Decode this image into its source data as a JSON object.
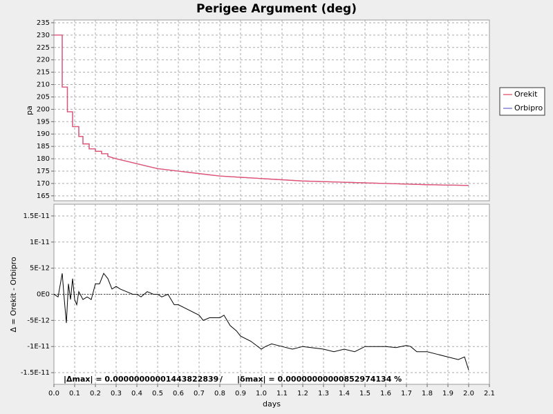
{
  "chart_data": [
    {
      "type": "line",
      "title": "Perigee Argument (deg)",
      "y_label": "pa",
      "x": [
        0,
        0.04,
        0.04,
        0.065,
        0.065,
        0.09,
        0.09,
        0.12,
        0.12,
        0.14,
        0.14,
        0.17,
        0.17,
        0.2,
        0.2,
        0.23,
        0.23,
        0.26,
        0.26,
        0.3,
        0.35,
        0.4,
        0.45,
        0.5,
        0.6,
        0.7,
        0.8,
        0.9,
        1.0,
        1.2,
        1.4,
        1.6,
        1.8,
        2.0
      ],
      "series": [
        {
          "name": "Orekit",
          "color": "#e8506e",
          "values": [
            230,
            230,
            209,
            209,
            199,
            199,
            193,
            193,
            189,
            189,
            186,
            186,
            184,
            184,
            183,
            183,
            182,
            182,
            181,
            180,
            179,
            178,
            177,
            176,
            175,
            174,
            173,
            172.5,
            172,
            171,
            170.5,
            170,
            169.5,
            169.2
          ]
        },
        {
          "name": "Orbipro",
          "color": "#7070d0",
          "values": [
            230,
            230,
            209,
            209,
            199,
            199,
            193,
            193,
            189,
            189,
            186,
            186,
            184,
            184,
            183,
            183,
            182,
            182,
            181,
            180,
            179,
            178,
            177,
            176,
            175,
            174,
            173,
            172.5,
            172,
            171,
            170.5,
            170,
            169.5,
            169.2
          ]
        }
      ],
      "ylim": [
        163,
        236.1
      ],
      "yticks": [
        165,
        170,
        175,
        180,
        185,
        190,
        195,
        200,
        205,
        210,
        215,
        220,
        225,
        230,
        235
      ],
      "grid": true,
      "legend": "right"
    },
    {
      "type": "line",
      "x_label": "days",
      "y_label": "Δ = Orekit - Orbipro",
      "x": [
        0,
        0.02,
        0.04,
        0.05,
        0.06,
        0.07,
        0.08,
        0.09,
        0.1,
        0.11,
        0.12,
        0.14,
        0.16,
        0.18,
        0.2,
        0.22,
        0.24,
        0.26,
        0.28,
        0.3,
        0.32,
        0.35,
        0.38,
        0.4,
        0.42,
        0.45,
        0.48,
        0.5,
        0.52,
        0.55,
        0.58,
        0.6,
        0.65,
        0.7,
        0.72,
        0.75,
        0.8,
        0.82,
        0.85,
        0.88,
        0.9,
        0.95,
        1.0,
        1.02,
        1.05,
        1.1,
        1.15,
        1.2,
        1.3,
        1.35,
        1.4,
        1.45,
        1.5,
        1.55,
        1.6,
        1.65,
        1.7,
        1.72,
        1.75,
        1.8,
        1.85,
        1.9,
        1.95,
        1.98,
        2.0
      ],
      "values": [
        0,
        -5e-13,
        4e-12,
        -1e-12,
        -5.5e-12,
        2e-12,
        -1e-12,
        3e-12,
        -1e-12,
        -2e-12,
        5e-13,
        -1e-12,
        -5e-13,
        -1e-12,
        2e-12,
        2e-12,
        4e-12,
        3e-12,
        1e-12,
        1.5e-12,
        1e-12,
        5e-13,
        0,
        0,
        -5e-13,
        5e-13,
        0,
        0,
        -5e-13,
        0,
        -2e-12,
        -2e-12,
        -3e-12,
        -4e-12,
        -5e-12,
        -4.5e-12,
        -4.5e-12,
        -4e-12,
        -6e-12,
        -7e-12,
        -8e-12,
        -9e-12,
        -1.05e-11,
        -1e-11,
        -9.5e-12,
        -1e-11,
        -1.05e-11,
        -1e-11,
        -1.05e-11,
        -1.1e-11,
        -1.05e-11,
        -1.1e-11,
        -1e-11,
        -1e-11,
        -1e-11,
        -1.02e-11,
        -9.8e-12,
        -1e-11,
        -1.1e-11,
        -1.1e-11,
        -1.15e-11,
        -1.2e-11,
        -1.25e-11,
        -1.2e-11,
        -1.45e-11
      ],
      "color": "#000000",
      "ylim": [
        -1.724e-11,
        1.724e-11
      ],
      "yticks": [
        {
          "value": -1.5e-11,
          "label": "-1.5E-11"
        },
        {
          "value": -1e-11,
          "label": "-1E-11"
        },
        {
          "value": -5e-12,
          "label": "-5E-12"
        },
        {
          "value": 0,
          "label": "0E0"
        },
        {
          "value": 5e-12,
          "label": "5E-12"
        },
        {
          "value": 1e-11,
          "label": "1E-11"
        },
        {
          "value": 1.5e-11,
          "label": "1.5E-11"
        }
      ],
      "xlim": [
        0,
        2.1
      ],
      "xticks": [
        {
          "value": 0,
          "label": "0.0"
        },
        0.1,
        0.2,
        0.3,
        0.4,
        0.5,
        0.6,
        0.7,
        0.8,
        0.9,
        {
          "value": 1,
          "label": "1.0"
        },
        1.1,
        1.2,
        1.3,
        1.4,
        1.5,
        1.6,
        1.7,
        1.8,
        1.9,
        {
          "value": 2,
          "label": "2.0"
        },
        2.1
      ],
      "grid": true,
      "annotations": [
        "|Δmax| = 0.00000000001443822839",
        "/",
        "|δmax| = 0.00000000000852974134 %"
      ]
    }
  ]
}
